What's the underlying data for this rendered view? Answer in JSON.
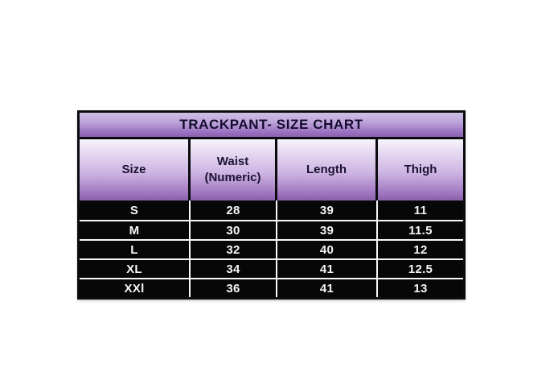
{
  "page": {
    "background": "#ffffff"
  },
  "chart_data": {
    "type": "table",
    "title": "TRACKPANT- SIZE CHART",
    "columns": [
      "Size",
      "Waist (Numeric)",
      "Length",
      "Thigh"
    ],
    "rows": [
      [
        "S",
        "28",
        "39",
        "11"
      ],
      [
        "M",
        "30",
        "39",
        "11.5"
      ],
      [
        "L",
        "32",
        "40",
        "12"
      ],
      [
        "XL",
        "34",
        "41",
        "12.5"
      ],
      [
        "XXl",
        "36",
        "41",
        "13"
      ]
    ],
    "layout": {
      "grid": "on",
      "header_position": "top"
    }
  },
  "colors": {
    "outer_border": "#0c0c10",
    "data_row_background": "#070707",
    "data_row_text": "#f5f5f5",
    "grid_separator": "#f8f8f8",
    "header_text": "#1a1133",
    "purple_gradient_top": "#f7f4fb",
    "purple_gradient_bottom": "#8a5fae",
    "canvas_background": "#ffffff"
  }
}
